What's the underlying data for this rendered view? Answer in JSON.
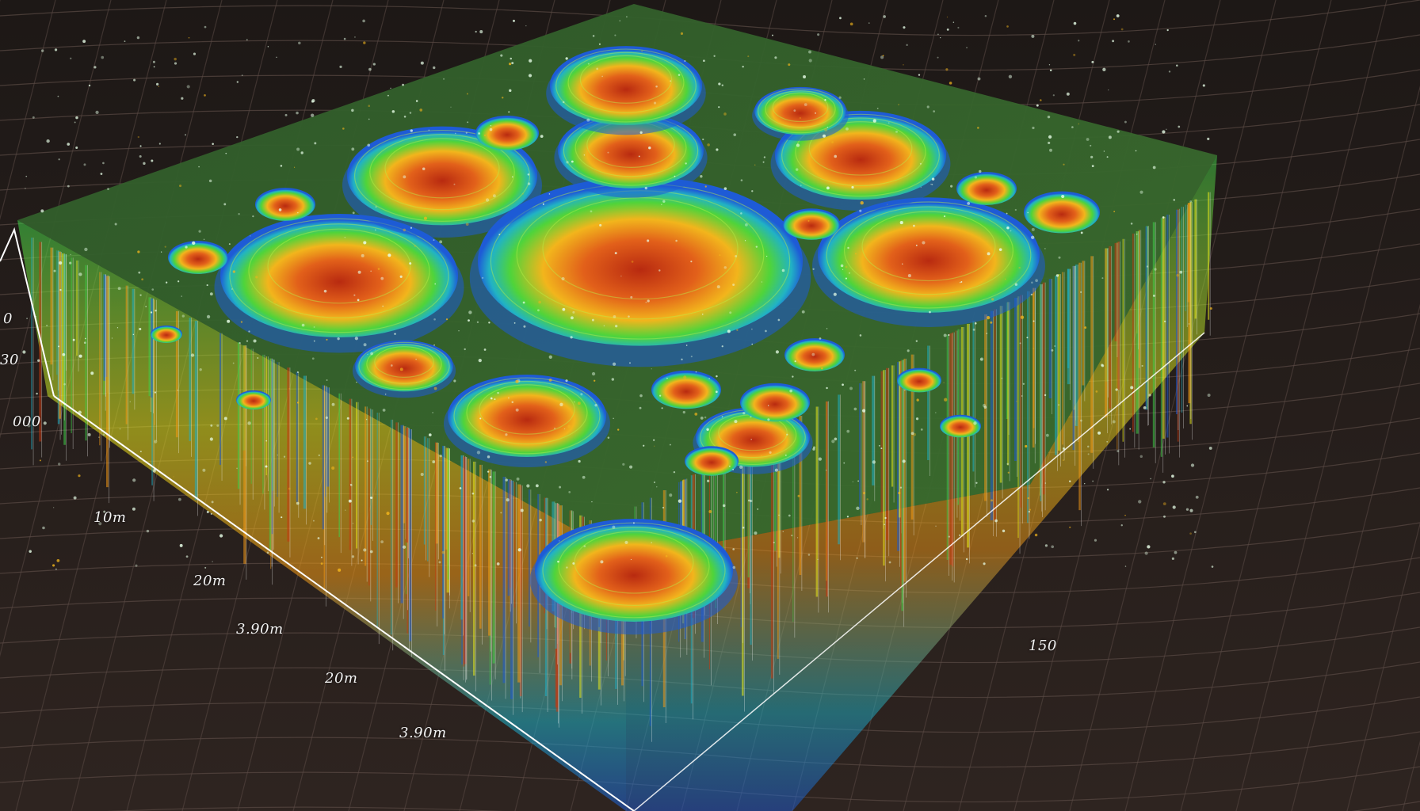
{
  "chart_data": {
    "type": "surface-3d",
    "title": "",
    "xlabel": "",
    "ylabel": "",
    "zlabel": "",
    "vertical_axis_ticks": [
      "0",
      "30",
      "000"
    ],
    "depth_axis_ticks": [
      "10m",
      "20m",
      "3.90m",
      "20m",
      "3.90m"
    ],
    "right_edge_label": "150",
    "surface": "point-cloud volume with circular crater depressions",
    "craters": [
      {
        "name": "crater-1",
        "relative_size": 1.0
      },
      {
        "name": "crater-2",
        "relative_size": 0.7
      },
      {
        "name": "crater-3",
        "relative_size": 0.75
      },
      {
        "name": "crater-4",
        "relative_size": 0.7
      },
      {
        "name": "crater-5",
        "relative_size": 0.55
      },
      {
        "name": "crater-6",
        "relative_size": 0.5
      },
      {
        "name": "crater-7",
        "relative_size": 0.55
      },
      {
        "name": "crater-8",
        "relative_size": 0.5
      },
      {
        "name": "crater-9",
        "relative_size": 0.45
      },
      {
        "name": "crater-10",
        "relative_size": 0.35
      },
      {
        "name": "crater-11",
        "relative_size": 0.3
      },
      {
        "name": "crater-12",
        "relative_size": 0.6
      }
    ],
    "colormap": [
      "#1e5bd6",
      "#1fb2c8",
      "#3fd14a",
      "#e6e81e",
      "#f59a16",
      "#c8380f"
    ],
    "grid": true,
    "legend": "none"
  }
}
